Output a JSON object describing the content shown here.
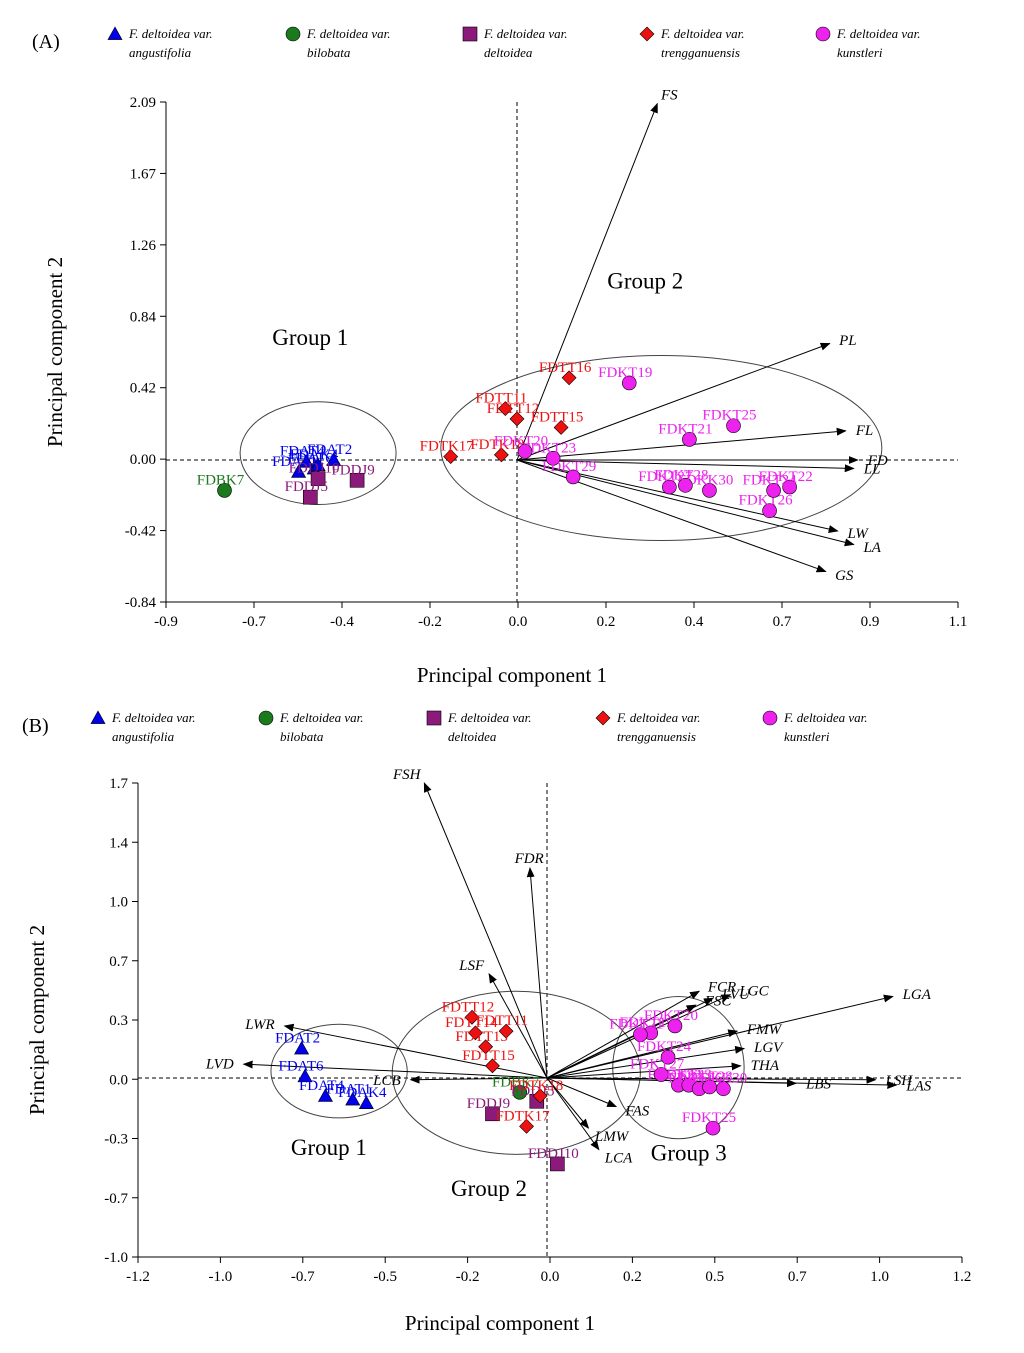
{
  "legend": {
    "items": [
      {
        "genus": "F. deltoidea var.",
        "variety": "angustifolia",
        "color": "#0000ee",
        "shape": "triangle"
      },
      {
        "genus": "F. deltoidea var.",
        "variety": "bilobata",
        "color": "#1b7a1b",
        "shape": "circle"
      },
      {
        "genus": "F. deltoidea var.",
        "variety": "deltoidea",
        "color": "#8b1a7a",
        "shape": "square"
      },
      {
        "genus": "F. deltoidea var.",
        "variety": "trengganuensis",
        "color": "#ee1111",
        "shape": "diamond"
      },
      {
        "genus": "F. deltoidea var.",
        "variety": "kunstleri",
        "color": "#ee22ee",
        "shape": "circle"
      }
    ]
  },
  "chart_data": [
    {
      "panel_label": "(A)",
      "type": "scatter",
      "xlabel": "Principal component 1",
      "ylabel": "Principal component 2",
      "xlim": [
        -0.9,
        1.1
      ],
      "ylim": [
        -0.84,
        2.09
      ],
      "xticks": [
        "-0.9",
        "-0.7",
        "-0.4",
        "-0.2",
        "0.0",
        "0.2",
        "0.4",
        "0.7",
        "0.9",
        "1.1"
      ],
      "yticks": [
        "2.09",
        "1.67",
        "1.26",
        "0.84",
        "0.42",
        "0.00",
        "-0.42",
        "-0.84"
      ],
      "groups": [
        {
          "label": "Group 1",
          "cx": -0.51,
          "cy": 0.04,
          "rx": 0.2,
          "ry": 0.3,
          "lx": -0.53,
          "ly": 0.67
        },
        {
          "label": "Group 2",
          "cx": 0.36,
          "cy": 0.07,
          "rx": 0.55,
          "ry": 0.54,
          "lx": 0.32,
          "ly": 1.0
        }
      ],
      "vectors": [
        {
          "label": "FS",
          "x": 0.35,
          "y": 2.08
        },
        {
          "label": "PL",
          "x": 0.78,
          "y": 0.68
        },
        {
          "label": "FL",
          "x": 0.82,
          "y": 0.17
        },
        {
          "label": "FD",
          "x": 0.85,
          "y": 0.0
        },
        {
          "label": "LL",
          "x": 0.84,
          "y": -0.05
        },
        {
          "label": "LW",
          "x": 0.8,
          "y": -0.42
        },
        {
          "label": "LA",
          "x": 0.84,
          "y": -0.5
        },
        {
          "label": "GS",
          "x": 0.77,
          "y": -0.66
        }
      ],
      "points": [
        {
          "label": "FDAT2",
          "x": -0.47,
          "y": 0.0,
          "series": 0
        },
        {
          "label": "FDAT6",
          "x": -0.52,
          "y": -0.05,
          "series": 0
        },
        {
          "label": "FDAT4",
          "x": -0.54,
          "y": -0.01,
          "series": 0
        },
        {
          "label": "FDAT1",
          "x": -0.56,
          "y": -0.07,
          "series": 0
        },
        {
          "label": "FDAK4",
          "x": -0.51,
          "y": -0.03,
          "series": 0
        },
        {
          "label": "FDBK7",
          "x": -0.75,
          "y": -0.18,
          "series": 1
        },
        {
          "label": "FDDJ9",
          "x": -0.41,
          "y": -0.12,
          "series": 2
        },
        {
          "label": "FDDJ10",
          "x": -0.51,
          "y": -0.11,
          "series": 2
        },
        {
          "label": "FDDJ5",
          "x": -0.53,
          "y": -0.22,
          "series": 2
        },
        {
          "label": "FDTT16",
          "x": 0.13,
          "y": 0.48,
          "series": 3
        },
        {
          "label": "FDTT11",
          "x": -0.03,
          "y": 0.3,
          "series": 3
        },
        {
          "label": "FDTT12",
          "x": 0.0,
          "y": 0.24,
          "series": 3
        },
        {
          "label": "FDTT15",
          "x": 0.11,
          "y": 0.19,
          "series": 3
        },
        {
          "label": "FDTK17",
          "x": -0.17,
          "y": 0.02,
          "series": 3
        },
        {
          "label": "FDTK18",
          "x": -0.04,
          "y": 0.03,
          "series": 3
        },
        {
          "label": "FDKT19",
          "x": 0.28,
          "y": 0.45,
          "series": 4
        },
        {
          "label": "FDKT25",
          "x": 0.54,
          "y": 0.2,
          "series": 4
        },
        {
          "label": "FDKT21",
          "x": 0.43,
          "y": 0.12,
          "series": 4
        },
        {
          "label": "FDKT20",
          "x": 0.02,
          "y": 0.05,
          "series": 4
        },
        {
          "label": "FDKT23",
          "x": 0.09,
          "y": 0.01,
          "series": 4
        },
        {
          "label": "FDKT22",
          "x": 0.68,
          "y": -0.16,
          "series": 4
        },
        {
          "label": "FDKT26",
          "x": 0.63,
          "y": -0.3,
          "series": 4
        },
        {
          "label": "FDKK30",
          "x": 0.48,
          "y": -0.18,
          "series": 4
        },
        {
          "label": "FDKT24",
          "x": 0.64,
          "y": -0.18,
          "series": 4
        },
        {
          "label": "FDKT27",
          "x": 0.38,
          "y": -0.16,
          "series": 4
        },
        {
          "label": "FDKT28",
          "x": 0.42,
          "y": -0.15,
          "series": 4
        },
        {
          "label": "FDKT29",
          "x": 0.14,
          "y": -0.1,
          "series": 4
        }
      ]
    },
    {
      "panel_label": "(B)",
      "type": "scatter",
      "xlabel": "Principal component 1",
      "ylabel": "Principal component 2",
      "xlim": [
        -1.2,
        1.2
      ],
      "ylim": [
        -1.0,
        1.7
      ],
      "xticks": [
        "-1.2",
        "-1.0",
        "-0.7",
        "-0.5",
        "-0.2",
        "0.0",
        "0.2",
        "0.5",
        "0.7",
        "1.0",
        "1.2"
      ],
      "yticks": [
        "1.7",
        "1.4",
        "1.0",
        "0.7",
        "0.3",
        "0.0",
        "-0.3",
        "-0.7",
        "-1.0"
      ],
      "groups": [
        {
          "label": "Group 1",
          "cx": -0.61,
          "cy": 0.04,
          "rx": 0.2,
          "ry": 0.27,
          "lx": -0.64,
          "ly": -0.43
        },
        {
          "label": "Group 2",
          "cx": -0.09,
          "cy": 0.03,
          "rx": 0.36,
          "ry": 0.47,
          "lx": -0.17,
          "ly": -0.66
        },
        {
          "label": "Group 3",
          "cx": 0.38,
          "cy": 0.06,
          "rx": 0.19,
          "ry": 0.41,
          "lx": 0.41,
          "ly": -0.46
        }
      ],
      "vectors": [
        {
          "label": "FSH",
          "x": -0.36,
          "y": 1.7
        },
        {
          "label": "FDR",
          "x": -0.05,
          "y": 1.21
        },
        {
          "label": "LSF",
          "x": -0.17,
          "y": 0.6
        },
        {
          "label": "LWR",
          "x": -0.77,
          "y": 0.3
        },
        {
          "label": "LVD",
          "x": -0.89,
          "y": 0.08
        },
        {
          "label": "LCB",
          "x": -0.4,
          "y": -0.01
        },
        {
          "label": "FAS",
          "x": 0.2,
          "y": -0.16
        },
        {
          "label": "LMW",
          "x": 0.12,
          "y": -0.28
        },
        {
          "label": "LCA",
          "x": 0.15,
          "y": -0.4
        },
        {
          "label": "FCR",
          "x": 0.44,
          "y": 0.5
        },
        {
          "label": "FSC",
          "x": 0.43,
          "y": 0.42
        },
        {
          "label": "LVU",
          "x": 0.48,
          "y": 0.46
        },
        {
          "label": "LGC",
          "x": 0.53,
          "y": 0.48
        },
        {
          "label": "FMW",
          "x": 0.55,
          "y": 0.27
        },
        {
          "label": "LGV",
          "x": 0.57,
          "y": 0.17
        },
        {
          "label": "THA",
          "x": 0.56,
          "y": 0.07
        },
        {
          "label": "LBS",
          "x": 0.72,
          "y": -0.03
        },
        {
          "label": "LSH",
          "x": 0.95,
          "y": -0.01
        },
        {
          "label": "LAS",
          "x": 1.01,
          "y": -0.04
        },
        {
          "label": "LGA",
          "x": 1.0,
          "y": 0.47
        }
      ],
      "points": [
        {
          "label": "FDAT2",
          "x": -0.72,
          "y": 0.17,
          "series": 0
        },
        {
          "label": "FDAT6",
          "x": -0.71,
          "y": 0.01,
          "series": 0
        },
        {
          "label": "FDAT4",
          "x": -0.65,
          "y": -0.1,
          "series": 0
        },
        {
          "label": "FDAT1",
          "x": -0.57,
          "y": -0.12,
          "series": 0
        },
        {
          "label": "FDAK4",
          "x": -0.53,
          "y": -0.14,
          "series": 0
        },
        {
          "label": "FDBK7",
          "x": -0.08,
          "y": -0.08,
          "series": 1
        },
        {
          "label": "FDDJ9",
          "x": -0.16,
          "y": -0.2,
          "series": 2
        },
        {
          "label": "FDDJ5",
          "x": -0.03,
          "y": -0.13,
          "series": 2
        },
        {
          "label": "FDDJ10",
          "x": 0.03,
          "y": -0.48,
          "series": 2
        },
        {
          "label": "FDTT12",
          "x": -0.22,
          "y": 0.35,
          "series": 3
        },
        {
          "label": "FDTT11",
          "x": -0.12,
          "y": 0.27,
          "series": 3
        },
        {
          "label": "FDTT14",
          "x": -0.21,
          "y": 0.26,
          "series": 3
        },
        {
          "label": "FDTT13",
          "x": -0.18,
          "y": 0.18,
          "series": 3
        },
        {
          "label": "FDTT15",
          "x": -0.16,
          "y": 0.07,
          "series": 3
        },
        {
          "label": "FDTK18",
          "x": -0.02,
          "y": -0.1,
          "series": 3
        },
        {
          "label": "FDTK17",
          "x": -0.06,
          "y": -0.27,
          "series": 3
        },
        {
          "label": "FDKT19",
          "x": 0.3,
          "y": 0.26,
          "series": 4
        },
        {
          "label": "FDKT20",
          "x": 0.37,
          "y": 0.3,
          "series": 4
        },
        {
          "label": "FDKT21",
          "x": 0.27,
          "y": 0.25,
          "series": 4
        },
        {
          "label": "FDKT24",
          "x": 0.35,
          "y": 0.12,
          "series": 4
        },
        {
          "label": "FDKT27",
          "x": 0.33,
          "y": 0.02,
          "series": 4
        },
        {
          "label": "FDKT22",
          "x": 0.38,
          "y": -0.04,
          "series": 4
        },
        {
          "label": "FDKT23",
          "x": 0.41,
          "y": -0.04,
          "series": 4
        },
        {
          "label": "FDKT26",
          "x": 0.44,
          "y": -0.06,
          "series": 4
        },
        {
          "label": "FDKT28",
          "x": 0.47,
          "y": -0.05,
          "series": 4
        },
        {
          "label": "FDKK30",
          "x": 0.51,
          "y": -0.06,
          "series": 4
        },
        {
          "label": "FDKT25",
          "x": 0.48,
          "y": -0.28,
          "series": 4
        }
      ]
    }
  ]
}
